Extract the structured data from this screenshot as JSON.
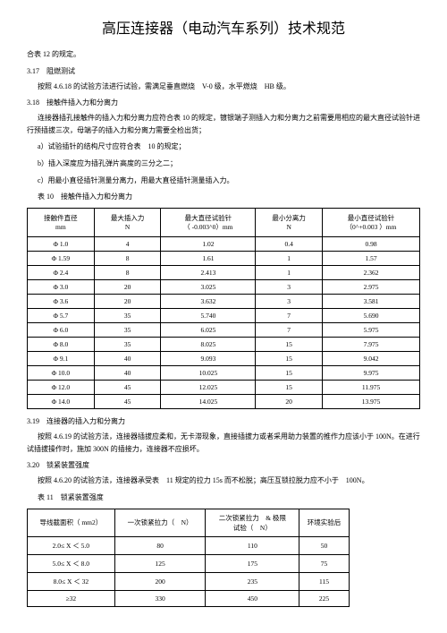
{
  "title": "高压连接器（电动汽车系列）技术规范",
  "pretext": "合表 12 的规定。",
  "s317": {
    "num": "3.17",
    "title": "阻燃测试",
    "body": "按照 4.6.18 的试验方法进行试验，需满足垂直燃烧　V-0 级，水平燃烧　HB 级。"
  },
  "s318": {
    "num": "3.18",
    "title": "接触件插入力和分离力",
    "p1": "连接器插孔接触件的插入力和分离力应符合表 10 的规定，镀银端子测插入力和分离力之前需要用相应的最大直径试验针进行预插拔三次，母端子的插入力和分离力需要全检出货；",
    "a": "a）试验插针的结构尺寸应符合表　10 的规定；",
    "b": "b）插入深度应为插孔弹片高度的三分之二；",
    "c": "c）用最小直径插针测量分离力，用最大直径插针测量插入力。",
    "t10caption": "表 10　接触件插入力和分离力",
    "t10headers": [
      "接触件直径\nmm",
      "最大插入力\nN",
      "最大直径试验针\n（ -0.003^0）mm",
      "最小分离力\nN",
      "最小直径试验针\n（0^+0.003 ）mm"
    ],
    "t10rows": [
      [
        "Φ 1.0",
        "4",
        "1.02",
        "0.4",
        "0.98"
      ],
      [
        "Φ 1.59",
        "8",
        "1.61",
        "1",
        "1.57"
      ],
      [
        "Φ 2.4",
        "8",
        "2.413",
        "1",
        "2.362"
      ],
      [
        "Φ 3.0",
        "20",
        "3.025",
        "3",
        "2.975"
      ],
      [
        "Φ 3.6",
        "20",
        "3.632",
        "3",
        "3.581"
      ],
      [
        "Φ 5.7",
        "35",
        "5.740",
        "7",
        "5.690"
      ],
      [
        "Φ 6.0",
        "35",
        "6.025",
        "7",
        "5.975"
      ],
      [
        "Φ 8.0",
        "35",
        "8.025",
        "15",
        "7.975"
      ],
      [
        "Φ 9.1",
        "40",
        "9.093",
        "15",
        "9.042"
      ],
      [
        "Φ 10.0",
        "40",
        "10.025",
        "15",
        "9.975"
      ],
      [
        "Φ 12.0",
        "45",
        "12.025",
        "15",
        "11.975"
      ],
      [
        "Φ 14.0",
        "45",
        "14.025",
        "20",
        "13.975"
      ]
    ]
  },
  "s319": {
    "num": "3.19",
    "title": "连接器的插入力和分离力",
    "body": "按照 4.6.19 的试验方法，连接器插拔应柔和，无卡滞现象，直接插拔力或者采用助力装置的推作力应该小于 100N。在进行试插拔操作时，施加 300N 的插接力，连接器不应损坏。"
  },
  "s320": {
    "num": "3.20",
    "title": "锁紧装置强度",
    "body": "按照 4.6.20 的试验方法，连接器承受表　11 规定的拉力 15s 而不松脱；高压互锁拉脱力应不小于　100N。",
    "t11caption": "表 11　锁紧装置强度",
    "t11headers": [
      "导线截面积（ mm2）",
      "一次锁紧拉力（　N）",
      "二次锁紧拉力　& 极限\n试验（　N）",
      "环境实验后"
    ],
    "t11rows": [
      [
        "2.0≤ X ＜ 5.0",
        "80",
        "110",
        "50"
      ],
      [
        "5.0≤ X ＜ 8.0",
        "125",
        "175",
        "75"
      ],
      [
        "8.0≤ X ＜ 32",
        "200",
        "235",
        "115"
      ],
      [
        "≥32",
        "330",
        "450",
        "225"
      ]
    ]
  }
}
